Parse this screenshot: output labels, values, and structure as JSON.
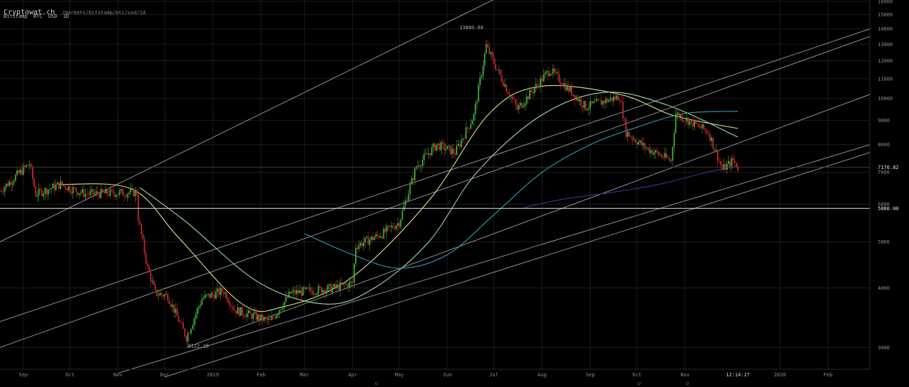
{
  "header": {
    "brand": "Cryptowat.ch",
    "path": "/markets/bitstamp/btc/usd/1d",
    "exchange": "Bitstamp",
    "pair_base": "BTC",
    "pair_quote": "USD",
    "interval": "1D"
  },
  "colors": {
    "background": "#000000",
    "grid": "#1c1c1c",
    "candle_up": "#3fae3a",
    "candle_down": "#c1272d",
    "trend_line": "#b9b9b9",
    "ma_fast": "#d8e58f",
    "ma_mid": "#9fd7a8",
    "ma_slow": "#2a9fb0",
    "ma_long": "#36369a"
  },
  "chart_data": {
    "type": "candlestick",
    "y_scale": "log",
    "ylim": [
      2700,
      16100
    ],
    "xlim": [
      "2018-08-17",
      "2020-02-28"
    ],
    "y_ticks": [
      3000,
      4000,
      5000,
      6000,
      7000,
      8000,
      9000,
      10000,
      11000,
      12000,
      13000,
      14000,
      15000,
      16000
    ],
    "y_tick_labels": [
      "3000",
      "4000",
      "5000",
      "6000",
      "7000",
      "8000",
      "9000",
      "10000",
      "11000",
      "12000",
      "13000",
      "14000",
      "15000",
      "16000"
    ],
    "x_ticks": [
      {
        "date": "2018-09-01",
        "label": "Sep"
      },
      {
        "date": "2018-10-01",
        "label": "Oct"
      },
      {
        "date": "2018-11-01",
        "label": "Nov"
      },
      {
        "date": "2018-12-01",
        "label": "Dec"
      },
      {
        "date": "2019-01-01",
        "label": "2019"
      },
      {
        "date": "2019-02-01",
        "label": "Feb"
      },
      {
        "date": "2019-03-01",
        "label": "Mar"
      },
      {
        "date": "2019-04-01",
        "label": "Apr"
      },
      {
        "date": "2019-05-01",
        "label": "May"
      },
      {
        "date": "2019-06-01",
        "label": "Jun"
      },
      {
        "date": "2019-07-01",
        "label": "Jul"
      },
      {
        "date": "2019-08-01",
        "label": "Aug"
      },
      {
        "date": "2019-09-01",
        "label": "Sep"
      },
      {
        "date": "2019-10-01",
        "label": "Oct"
      },
      {
        "date": "2019-11-01",
        "label": "Nov"
      },
      {
        "date": "2020-01-01",
        "label": "2020"
      },
      {
        "date": "2020-02-01",
        "label": "Feb"
      }
    ],
    "time_label": {
      "date": "2019-12-05",
      "label": "12:14:27"
    },
    "last_price": {
      "value": 7176.82,
      "label": "7176.82"
    },
    "marked_level": {
      "value": 5880.0,
      "label": "5880.00"
    },
    "annotations": [
      {
        "date": "2019-06-26",
        "value": 13880.0,
        "label": "13880.00"
      },
      {
        "date": "2018-12-15",
        "value": 3122.28,
        "label": "3122.28"
      }
    ],
    "price_path": [
      {
        "date": "2018-08-17",
        "value": 6400
      },
      {
        "date": "2018-09-05",
        "value": 7300
      },
      {
        "date": "2018-09-09",
        "value": 6300
      },
      {
        "date": "2018-09-25",
        "value": 6600
      },
      {
        "date": "2018-10-11",
        "value": 6300
      },
      {
        "date": "2018-11-13",
        "value": 6350
      },
      {
        "date": "2018-11-14",
        "value": 5600
      },
      {
        "date": "2018-11-20",
        "value": 4400
      },
      {
        "date": "2018-11-25",
        "value": 3900
      },
      {
        "date": "2018-12-03",
        "value": 3850
      },
      {
        "date": "2018-12-15",
        "value": 3150
      },
      {
        "date": "2018-12-25",
        "value": 3800
      },
      {
        "date": "2019-01-08",
        "value": 3950
      },
      {
        "date": "2019-01-15",
        "value": 3600
      },
      {
        "date": "2019-02-07",
        "value": 3400
      },
      {
        "date": "2019-02-20",
        "value": 3900
      },
      {
        "date": "2019-03-20",
        "value": 4000
      },
      {
        "date": "2019-04-01",
        "value": 4100
      },
      {
        "date": "2019-04-03",
        "value": 4900
      },
      {
        "date": "2019-04-20",
        "value": 5200
      },
      {
        "date": "2019-05-01",
        "value": 5500
      },
      {
        "date": "2019-05-12",
        "value": 7200
      },
      {
        "date": "2019-05-25",
        "value": 8000
      },
      {
        "date": "2019-06-06",
        "value": 7700
      },
      {
        "date": "2019-06-18",
        "value": 9200
      },
      {
        "date": "2019-06-26",
        "value": 12900
      },
      {
        "date": "2019-07-03",
        "value": 11500
      },
      {
        "date": "2019-07-16",
        "value": 9500
      },
      {
        "date": "2019-08-06",
        "value": 11500
      },
      {
        "date": "2019-08-29",
        "value": 9600
      },
      {
        "date": "2019-09-20",
        "value": 10100
      },
      {
        "date": "2019-09-24",
        "value": 8500
      },
      {
        "date": "2019-10-06",
        "value": 7900
      },
      {
        "date": "2019-10-23",
        "value": 7400
      },
      {
        "date": "2019-10-26",
        "value": 9300
      },
      {
        "date": "2019-11-08",
        "value": 8800
      },
      {
        "date": "2019-11-16",
        "value": 8500
      },
      {
        "date": "2019-11-25",
        "value": 7100
      },
      {
        "date": "2019-12-02",
        "value": 7400
      },
      {
        "date": "2019-12-05",
        "value": 7176.82
      }
    ],
    "moving_averages": [
      {
        "key": "ma_fast",
        "points": [
          {
            "date": "2018-09-24",
            "value": 6600
          },
          {
            "date": "2018-11-10",
            "value": 6450
          },
          {
            "date": "2018-12-10",
            "value": 5100
          },
          {
            "date": "2019-01-20",
            "value": 3700
          },
          {
            "date": "2019-02-15",
            "value": 3650
          },
          {
            "date": "2019-03-31",
            "value": 4200
          },
          {
            "date": "2019-05-20",
            "value": 6100
          },
          {
            "date": "2019-06-28",
            "value": 9300
          },
          {
            "date": "2019-07-31",
            "value": 10600
          },
          {
            "date": "2019-09-20",
            "value": 10200
          },
          {
            "date": "2019-10-25",
            "value": 9200
          },
          {
            "date": "2019-12-05",
            "value": 8650
          }
        ]
      },
      {
        "key": "ma_mid",
        "points": [
          {
            "date": "2018-11-15",
            "value": 6500
          },
          {
            "date": "2018-12-15",
            "value": 5500
          },
          {
            "date": "2019-01-31",
            "value": 4100
          },
          {
            "date": "2019-03-15",
            "value": 3700
          },
          {
            "date": "2019-04-15",
            "value": 4000
          },
          {
            "date": "2019-05-20",
            "value": 5000
          },
          {
            "date": "2019-06-20",
            "value": 7000
          },
          {
            "date": "2019-07-31",
            "value": 9200
          },
          {
            "date": "2019-09-10",
            "value": 10300
          },
          {
            "date": "2019-10-20",
            "value": 9700
          },
          {
            "date": "2019-12-05",
            "value": 8300
          }
        ]
      },
      {
        "key": "ma_slow",
        "points": [
          {
            "date": "2019-03-01",
            "value": 5200
          },
          {
            "date": "2019-04-01",
            "value": 4700
          },
          {
            "date": "2019-05-01",
            "value": 4400
          },
          {
            "date": "2019-06-01",
            "value": 4700
          },
          {
            "date": "2019-07-01",
            "value": 5700
          },
          {
            "date": "2019-08-01",
            "value": 7000
          },
          {
            "date": "2019-09-01",
            "value": 8000
          },
          {
            "date": "2019-10-01",
            "value": 8700
          },
          {
            "date": "2019-11-01",
            "value": 9300
          },
          {
            "date": "2019-12-05",
            "value": 9400
          }
        ]
      },
      {
        "key": "ma_long",
        "points": [
          {
            "date": "2019-07-20",
            "value": 5900
          },
          {
            "date": "2019-08-15",
            "value": 6150
          },
          {
            "date": "2019-09-15",
            "value": 6350
          },
          {
            "date": "2019-10-15",
            "value": 6600
          },
          {
            "date": "2019-11-15",
            "value": 7000
          },
          {
            "date": "2019-12-05",
            "value": 7200
          }
        ]
      }
    ],
    "trend_lines": [
      {
        "from": {
          "date": "2018-08-17",
          "value": 5000
        },
        "to": {
          "date": "2019-07-15",
          "value": 17000
        }
      },
      {
        "from": {
          "date": "2018-08-17",
          "value": 3400
        },
        "to": {
          "date": "2020-02-28",
          "value": 14000
        }
      },
      {
        "from": {
          "date": "2018-08-17",
          "value": 3000
        },
        "to": {
          "date": "2020-02-28",
          "value": 13500
        }
      },
      {
        "from": {
          "date": "2018-12-15",
          "value": 3000
        },
        "to": {
          "date": "2020-02-28",
          "value": 10200
        }
      },
      {
        "from": {
          "date": "2018-11-01",
          "value": 2650
        },
        "to": {
          "date": "2020-02-28",
          "value": 8000
        }
      },
      {
        "from": {
          "date": "2018-12-01",
          "value": 2600
        },
        "to": {
          "date": "2020-02-28",
          "value": 7700
        }
      }
    ]
  }
}
